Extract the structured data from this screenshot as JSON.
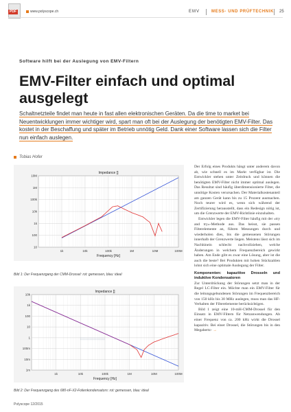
{
  "header": {
    "site": "www.polyscope.ch",
    "section_emv": "EMV",
    "section_main": "MESS- UND PRÜFTECHNIK",
    "page_number": "25",
    "pdf_label": "PDF"
  },
  "article": {
    "kicker": "Software hilft bei der Auslegung von EMV-Filtern",
    "title": "EMV-Filter einfach und optimal ausgelegt",
    "lead": "Schaltnetzteile findet man heute in fast allen elektronischen Geräten. Da die time to market bei Neuentwicklungen immer wichtiger wird, spart man oft bei der Auslegung der benötigten EMV-Filter. Das kostet in der Beschaffung und später im Betrieb unnötig Geld. Dank einer Software lassen sich die Filter nun einfach auslegen.",
    "author": "Tobias Hofer",
    "caption1": "Bild 1: Der Frequenzgang der CMM-Drossel: rot: gemessen, blau: ideal",
    "caption2": "Bild 2: Der Frequenzgang des 680-nF-X2-Folienkondensators: rot: gemessen, blau: ideal",
    "body_p1": "Der Erfolg eines Produkts hängt unter anderem davon ab, wie schnell es im Markt verfügbar ist. Die Entwickler stehen unter Zeitdruck und können die benötigten EMV-Filter nicht immer optimal auslegen. Das Resultat sind häufig überdimensionierte Filter, die unnötige Kosten verursachen. Der Materialkostenanteil am ganzen Gerät kann bis zu 15 Prozent ausmachen. Noch teurer wird es, wenn sich während der Zertifizierung herausstellt, dass ein Redesign nötig ist, um die Grenzwerte der EMV-Richtlinie einzuhalten.",
    "body_p2": "Entwickler legen die EMV-Filter häufig mit der «try and try»-Methode aus. Das heisst, sie passen Filterelemente an, führen Messungen durch und wiederholen dies, bis die gemessenen Störungen innerhalb der Grenzwerte liegen. Meistens lässt sich im Nachhinein schlecht nachvollziehen, welche Änderungen in welchem Frequenzbereich gewirkt haben. Am Ende gibt es zwar eine Lösung, aber ist die auch die beste? Bei Produkten mit hohen Stückzahlen lohnt sich eine optimale Auslegung der Filter.",
    "subhead": "Komponenten: kapazitive Drosseln und induktive Kondensatoren",
    "body_p3": "Zur Unterdrückung der Störungen setzt man in der Regel LC-Filter ein. Möchte man ein EMV-Filter für die leitungsgebundenen Störungen im Frequenzbereich von 150 kHz bis 30 MHz auslegen, muss man das HF-Verhalten der Filterelemente berücksichtigen.",
    "body_p4": "Bild 1 zeigt eine 10-mH-CMM-Drossel für den Einsatz in EMV-Filtern für Netzanwendungen. Ab einer Frequenz von ca. 200 kHz wirkt die Drossel kapazitiv. Bei einer Drossel, die Störungen bis in den Megahertz-",
    "more_arrow": "→"
  },
  "footer": {
    "issue": "Polyscope 12/2015"
  },
  "chart_data": [
    {
      "type": "line",
      "title": "Impedance []",
      "xlabel": "Frequency [Hz]",
      "ylabel": "",
      "x_scale": "log",
      "y_scale": "log",
      "xlim": [
        100,
        100000000
      ],
      "ylim": [
        10,
        10000000
      ],
      "x_ticks": [
        "1k",
        "10k",
        "100k",
        "1M",
        "10M",
        "100M"
      ],
      "y_ticks": [
        "10M",
        "1M",
        "100k",
        "10k",
        "1k",
        "100",
        "10"
      ],
      "grid": true,
      "series": [
        {
          "color": "#2f4fd6",
          "x": [
            1000,
            100000000
          ],
          "y": [
            60,
            7000000
          ]
        },
        {
          "color": "#e03030",
          "x": [
            1000,
            10000,
            50000,
            150000,
            250000,
            500000,
            1000000,
            3000000,
            6000000,
            10000000,
            14000000,
            20000000
          ],
          "y": [
            65,
            650,
            3500,
            25000,
            30000,
            15000,
            8000,
            3500,
            1200,
            90,
            1000,
            200
          ]
        }
      ]
    },
    {
      "type": "line",
      "title": "Impedance []",
      "xlabel": "Frequency [Hz]",
      "ylabel": "",
      "x_scale": "log",
      "y_scale": "log",
      "xlim": [
        100,
        100000000
      ],
      "ylim": [
        0.001,
        10000
      ],
      "x_ticks": [
        "1k",
        "10k",
        "100k",
        "1M",
        "10M",
        "100M"
      ],
      "y_ticks": [
        "10k",
        "1k",
        "100",
        "10",
        "1",
        "100m",
        "10m",
        "1m"
      ],
      "grid": true,
      "series": [
        {
          "color": "#2f4fd6",
          "x": [
            100,
            100000000
          ],
          "y": [
            2300,
            0.0023
          ]
        },
        {
          "color": "#9a2a8a",
          "x": [
            100,
            1000000
          ],
          "y": [
            2300,
            0.23
          ]
        },
        {
          "color": "#e03030",
          "x": [
            1000000,
            2000000,
            3000000,
            4000000,
            6000000,
            10000000,
            30000000,
            100000000
          ],
          "y": [
            0.23,
            0.08,
            0.015,
            0.08,
            0.2,
            0.4,
            1.0,
            2.5
          ]
        }
      ],
      "annotation_band": [
        10000,
        100000
      ]
    }
  ]
}
